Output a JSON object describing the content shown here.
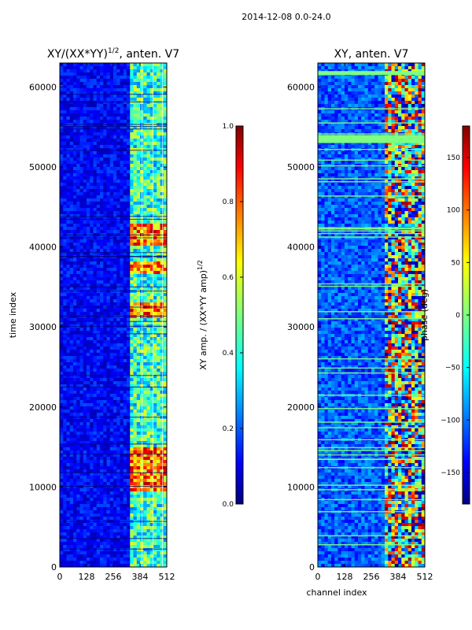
{
  "figure": {
    "suptitle": "2014-12-08 0.0-24.0"
  },
  "chart_data": [
    {
      "type": "heatmap",
      "title_main": "XY/(XX*YY)",
      "title_exp": "1/2",
      "title_suffix": ", anten. V7",
      "xlabel": "",
      "ylabel": "time index",
      "xlim": [
        0,
        512
      ],
      "ylim": [
        0,
        63000
      ],
      "xticks": [
        0,
        128,
        256,
        384,
        512
      ],
      "yticks": [
        0,
        10000,
        20000,
        30000,
        40000,
        50000,
        60000
      ],
      "colorbar": {
        "label_main": "XY amp. / (XX*YY amp)",
        "label_exp": "1/2",
        "range": [
          0.0,
          1.0
        ],
        "ticks": [
          0.0,
          0.2,
          0.4,
          0.6,
          0.8,
          1.0
        ],
        "tick_labels": [
          "0.0",
          "0.2",
          "0.4",
          "0.6",
          "0.8",
          "1.0"
        ]
      },
      "signal_channels": [
        330,
        512
      ],
      "bright_time_bands": [
        [
          31000,
          33000
        ],
        [
          36500,
          38000
        ],
        [
          40000,
          43000
        ],
        [
          9500,
          15000
        ]
      ],
      "description_values": "background ~0.05-0.2; channels 330-512 ~0.3-0.9"
    },
    {
      "type": "heatmap",
      "title_main": "XY, anten. V7",
      "xlabel": "channel index",
      "ylabel": "",
      "xlim": [
        0,
        512
      ],
      "ylim": [
        0,
        63000
      ],
      "xticks": [
        0,
        128,
        256,
        384,
        512
      ],
      "yticks": [
        0,
        10000,
        20000,
        30000,
        40000,
        50000,
        60000
      ],
      "colorbar": {
        "label_main": "phase (deg)",
        "range": [
          -180,
          180
        ],
        "ticks": [
          -150,
          -100,
          -50,
          0,
          50,
          100,
          150
        ],
        "tick_labels": [
          "−150",
          "−100",
          "−50",
          "0",
          "50",
          "100",
          "150"
        ]
      },
      "flag_bands": [
        [
          53000,
          54000
        ],
        [
          61500,
          62000
        ]
      ],
      "signal_channels": [
        320,
        512
      ]
    }
  ],
  "colors": {
    "jet_stops": [
      "#00007f",
      "#0000ff",
      "#007fff",
      "#00ffff",
      "#7fff7f",
      "#ffff00",
      "#ff7f00",
      "#ff0000",
      "#7f0000"
    ]
  }
}
